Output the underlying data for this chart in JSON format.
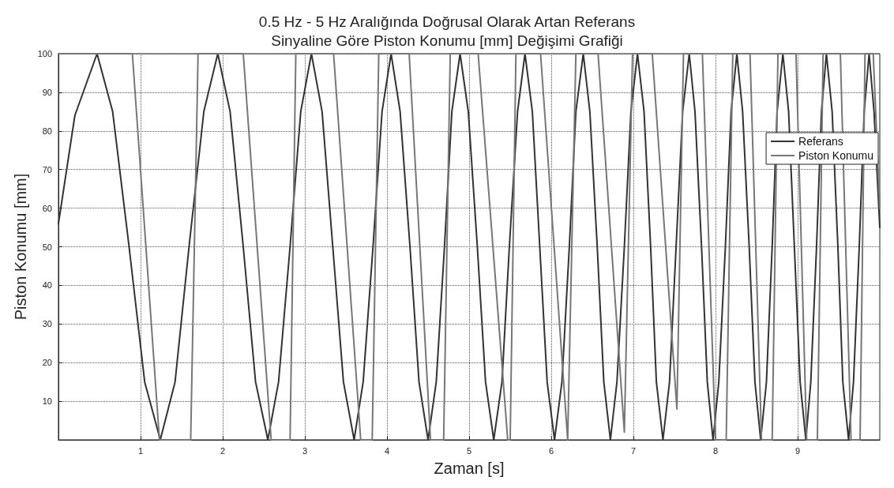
{
  "chart_data": {
    "type": "line",
    "title": "0.5 Hz - 5 Hz Aralığında Doğrusal Olarak Artan Referans\nSinyaline Göre Piston Konumu [mm] Değişimi Grafiği",
    "xlabel": "Zaman [s]",
    "ylabel": "Piston Konumu [mm]",
    "xlim": [
      0,
      10
    ],
    "xticks": [
      1,
      2,
      3,
      4,
      5,
      6,
      7,
      8,
      9
    ],
    "ylim": [
      0,
      100
    ],
    "yticks": [
      10,
      20,
      30,
      40,
      50,
      60,
      70,
      80,
      90,
      100
    ],
    "grid": true,
    "legend": "top right",
    "marker": "none",
    "line_style": "solid",
    "series": [
      {
        "name": "Referans",
        "color": "#333333",
        "x": [
          0,
          0.2,
          0.47,
          0.66,
          0.86,
          1.05,
          1.24,
          1.42,
          1.59,
          1.77,
          1.94,
          2.09,
          2.25,
          2.4,
          2.55,
          2.68,
          2.82,
          2.95,
          3.08,
          3.21,
          3.34,
          3.47,
          3.6,
          3.71,
          3.83,
          3.94,
          4.05,
          4.16,
          4.28,
          4.39,
          4.5,
          4.6,
          4.7,
          4.79,
          4.89,
          4.99,
          5.1,
          5.2,
          5.3,
          5.4,
          5.49,
          5.59,
          5.68,
          5.77,
          5.86,
          5.95,
          6.04,
          6.13,
          6.22,
          6.3,
          6.39,
          6.47,
          6.56,
          6.64,
          6.72,
          6.8,
          6.89,
          6.97,
          7.05,
          7.13,
          7.21,
          7.28,
          7.36,
          7.44,
          7.52,
          7.6,
          7.68,
          7.75,
          7.83,
          7.9,
          7.97,
          8.04,
          8.12,
          8.19,
          8.26,
          8.33,
          8.41,
          8.48,
          8.55,
          8.62,
          8.69,
          8.75,
          8.82,
          8.89,
          8.96,
          9.03,
          9.1,
          9.16,
          9.23,
          9.29,
          9.35,
          9.42,
          9.49,
          9.55,
          9.62,
          9.68,
          9.75,
          9.81,
          9.87,
          9.93,
          10
        ],
        "values": [
          56,
          84,
          100,
          85,
          50,
          15,
          0,
          15,
          50,
          85,
          100,
          85,
          50,
          15,
          0,
          15,
          50,
          85,
          100,
          85,
          50,
          15,
          0,
          15,
          50,
          85,
          100,
          85,
          50,
          15,
          0,
          15,
          50,
          85,
          100,
          85,
          50,
          15,
          0,
          15,
          50,
          85,
          100,
          85,
          50,
          15,
          0,
          15,
          50,
          85,
          100,
          85,
          50,
          15,
          0,
          15,
          50,
          85,
          100,
          85,
          50,
          15,
          0,
          15,
          50,
          85,
          100,
          85,
          50,
          15,
          0,
          15,
          50,
          85,
          100,
          85,
          50,
          15,
          0,
          15,
          50,
          85,
          100,
          85,
          50,
          15,
          0,
          15,
          50,
          85,
          100,
          85,
          50,
          15,
          0,
          15,
          50,
          85,
          100,
          85,
          55
        ]
      },
      {
        "name": "Piston Konumu",
        "color": "#777777",
        "x": [
          0,
          0.9,
          1.23,
          1.61,
          1.7,
          2.25,
          2.59,
          2.82,
          2.89,
          3.35,
          3.68,
          3.82,
          3.9,
          4.27,
          4.53,
          4.69,
          4.77,
          5.11,
          5.47,
          5.5,
          5.57,
          5.87,
          6.2,
          6.3,
          6.57,
          6.89,
          6.99,
          7.23,
          7.53,
          7.61,
          7.84,
          8.0,
          8.13,
          8.21,
          8.42,
          8.56,
          8.69,
          8.76,
          8.98,
          9.11,
          9.24,
          9.31,
          9.52,
          9.65,
          9.76,
          9.82,
          9.92,
          10
        ],
        "values": [
          100,
          100,
          0,
          0,
          100,
          100,
          0,
          0,
          100,
          100,
          0,
          0,
          100,
          100,
          0,
          0,
          100,
          100,
          0,
          0,
          100,
          100,
          0,
          100,
          100,
          2,
          100,
          100,
          8,
          100,
          100,
          0,
          0,
          100,
          100,
          0,
          0,
          100,
          100,
          0,
          0,
          100,
          100,
          0,
          0,
          100,
          100,
          60
        ]
      }
    ]
  }
}
